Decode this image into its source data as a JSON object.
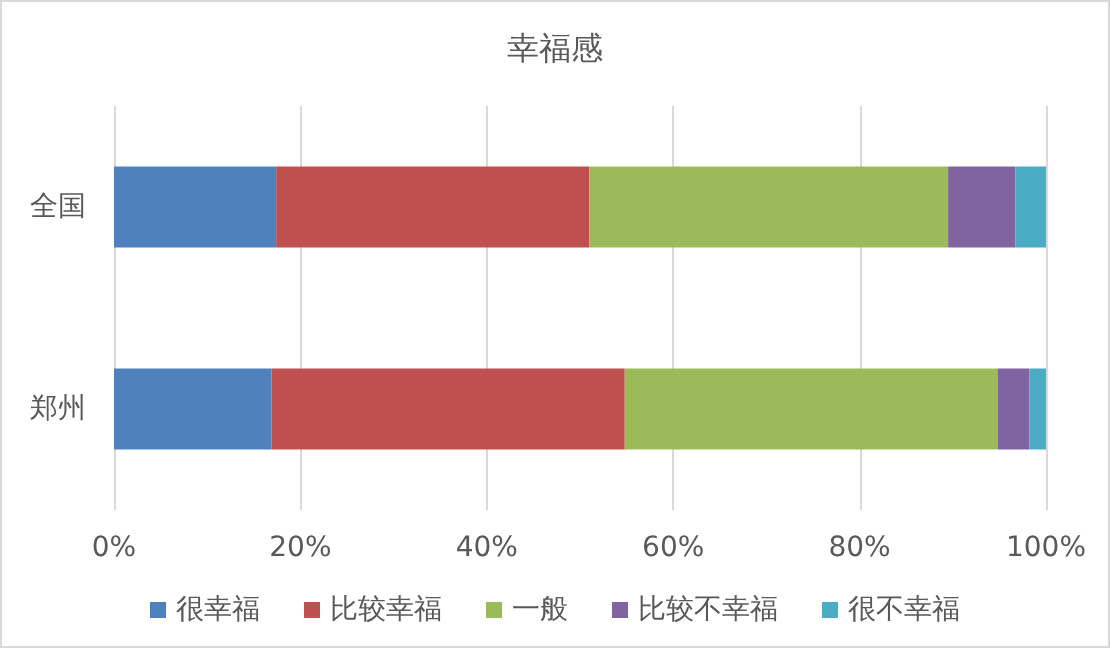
{
  "chart_data": {
    "type": "bar",
    "orientation": "horizontal",
    "stacked": true,
    "title": "幸福感",
    "categories": [
      "全国",
      "郑州"
    ],
    "series": [
      {
        "name": "很幸福",
        "color": "#4f81bd",
        "values": [
          17.4,
          16.9
        ]
      },
      {
        "name": "比较幸福",
        "color": "#c0504d",
        "values": [
          33.6,
          37.9
        ]
      },
      {
        "name": "一般",
        "color": "#9bbb59",
        "values": [
          38.5,
          40.0
        ]
      },
      {
        "name": "比较不幸福",
        "color": "#8064a2",
        "values": [
          7.2,
          3.4
        ]
      },
      {
        "name": "很不幸福",
        "color": "#4bacc6",
        "values": [
          3.3,
          1.8
        ]
      }
    ],
    "xlim": [
      0,
      100
    ],
    "xticks": [
      {
        "value": 0,
        "label": "0%"
      },
      {
        "value": 20,
        "label": "20%"
      },
      {
        "value": 40,
        "label": "40%"
      },
      {
        "value": 60,
        "label": "60%"
      },
      {
        "value": 80,
        "label": "80%"
      },
      {
        "value": 100,
        "label": "100%"
      }
    ],
    "grid": "x",
    "legend": "bottom"
  }
}
